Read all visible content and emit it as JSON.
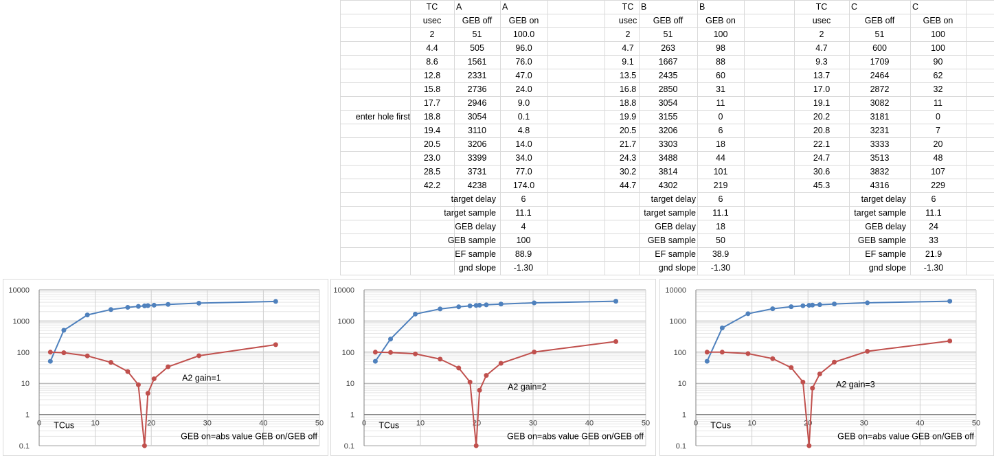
{
  "tables": [
    {
      "header1": [
        "TC",
        "A",
        "A"
      ],
      "header2": [
        "usec",
        "GEB off",
        "GEB on"
      ],
      "rows": [
        [
          "2",
          "51",
          "100.0"
        ],
        [
          "4.4",
          "505",
          "96.0"
        ],
        [
          "8.6",
          "1561",
          "76.0"
        ],
        [
          "12.8",
          "2331",
          "47.0"
        ],
        [
          "15.8",
          "2736",
          "24.0"
        ],
        [
          "17.7",
          "2946",
          "9.0"
        ],
        [
          "18.8",
          "3054",
          "0.1"
        ],
        [
          "19.4",
          "3110",
          "4.8"
        ],
        [
          "20.5",
          "3206",
          "14.0"
        ],
        [
          "23.0",
          "3399",
          "34.0"
        ],
        [
          "28.5",
          "3731",
          "77.0"
        ],
        [
          "42.2",
          "4238",
          "174.0"
        ]
      ],
      "note": "enter hole first",
      "params": [
        [
          "target delay",
          "6"
        ],
        [
          "target sample",
          "11.1"
        ],
        [
          "GEB delay",
          "4"
        ],
        [
          "GEB sample",
          "100"
        ],
        [
          "EF sample",
          "88.9"
        ],
        [
          "gnd slope",
          "-1.30"
        ]
      ]
    },
    {
      "header1": [
        "TC",
        "B",
        "B"
      ],
      "header2": [
        "usec",
        "GEB off",
        "GEB on"
      ],
      "rows": [
        [
          "2",
          "51",
          "100"
        ],
        [
          "4.7",
          "263",
          "98"
        ],
        [
          "9.1",
          "1667",
          "88"
        ],
        [
          "13.5",
          "2435",
          "60"
        ],
        [
          "16.8",
          "2850",
          "31"
        ],
        [
          "18.8",
          "3054",
          "11"
        ],
        [
          "19.9",
          "3155",
          "0"
        ],
        [
          "20.5",
          "3206",
          "6"
        ],
        [
          "21.7",
          "3303",
          "18"
        ],
        [
          "24.3",
          "3488",
          "44"
        ],
        [
          "30.2",
          "3814",
          "101"
        ],
        [
          "44.7",
          "4302",
          "219"
        ]
      ],
      "note": "",
      "params": [
        [
          "target delay",
          "6"
        ],
        [
          "target sample",
          "11.1"
        ],
        [
          "GEB delay",
          "18"
        ],
        [
          "GEB sample",
          "50"
        ],
        [
          "EF sample",
          "38.9"
        ],
        [
          "gnd slope",
          "-1.30"
        ]
      ]
    },
    {
      "header1": [
        "TC",
        "C",
        "C"
      ],
      "header2": [
        "usec",
        "GEB off",
        "GEB on"
      ],
      "rows": [
        [
          "2",
          "51",
          "100"
        ],
        [
          "4.7",
          "600",
          "100"
        ],
        [
          "9.3",
          "1709",
          "90"
        ],
        [
          "13.7",
          "2464",
          "62"
        ],
        [
          "17.0",
          "2872",
          "32"
        ],
        [
          "19.1",
          "3082",
          "11"
        ],
        [
          "20.2",
          "3181",
          "0"
        ],
        [
          "20.8",
          "3231",
          "7"
        ],
        [
          "22.1",
          "3333",
          "20"
        ],
        [
          "24.7",
          "3513",
          "48"
        ],
        [
          "30.6",
          "3832",
          "107"
        ],
        [
          "45.3",
          "4316",
          "229"
        ]
      ],
      "note": "",
      "params": [
        [
          "target delay",
          "6"
        ],
        [
          "target sample",
          "11.1"
        ],
        [
          "GEB delay",
          "24"
        ],
        [
          "GEB sample",
          "33"
        ],
        [
          "EF sample",
          "21.9"
        ],
        [
          "gnd slope",
          "-1.30"
        ]
      ]
    }
  ],
  "colors": {
    "geb_off": "#4f81bd",
    "geb_on": "#c0504d",
    "grid": "#d9d9d9"
  },
  "chart_data": [
    {
      "type": "scatter",
      "title": "",
      "xlabel": "TCus",
      "ylabel": "",
      "annotation": "A2 gain=1",
      "footnote": "GEB on=abs value GEB on/GEB off",
      "x_ticks": [
        "0",
        "10",
        "20",
        "30",
        "40",
        "50"
      ],
      "y_ticks": [
        "0.1",
        "1",
        "10",
        "100",
        "1000",
        "10000"
      ],
      "xlim": [
        0,
        50
      ],
      "ylim": [
        0.1,
        10000
      ],
      "y_scale": "log",
      "grid": true,
      "legend": "none",
      "series": [
        {
          "color": "#4f81bd",
          "x": [
            2,
            4.4,
            8.6,
            12.8,
            15.8,
            17.7,
            18.8,
            19.4,
            20.5,
            23.0,
            28.5,
            42.2
          ],
          "y": [
            51,
            505,
            1561,
            2331,
            2736,
            2946,
            3054,
            3110,
            3206,
            3399,
            3731,
            4238
          ]
        },
        {
          "color": "#c0504d",
          "x": [
            2,
            4.4,
            8.6,
            12.8,
            15.8,
            17.7,
            18.8,
            19.4,
            20.5,
            23.0,
            28.5,
            42.2
          ],
          "y": [
            100,
            96,
            76,
            47,
            24,
            9,
            0.1,
            4.8,
            14,
            34,
            77,
            174
          ]
        }
      ]
    },
    {
      "type": "scatter",
      "title": "",
      "xlabel": "TCus",
      "ylabel": "",
      "annotation": "A2 gain=2",
      "footnote": "GEB on=abs value GEB on/GEB off",
      "x_ticks": [
        "0",
        "10",
        "20",
        "30",
        "40",
        "50"
      ],
      "y_ticks": [
        "0.1",
        "1",
        "10",
        "100",
        "1000",
        "10000"
      ],
      "xlim": [
        0,
        50
      ],
      "ylim": [
        0.1,
        10000
      ],
      "y_scale": "log",
      "grid": true,
      "legend": "none",
      "series": [
        {
          "color": "#4f81bd",
          "x": [
            2,
            4.7,
            9.1,
            13.5,
            16.8,
            18.8,
            19.9,
            20.5,
            21.7,
            24.3,
            30.2,
            44.7
          ],
          "y": [
            51,
            263,
            1667,
            2435,
            2850,
            3054,
            3155,
            3206,
            3303,
            3488,
            3814,
            4302
          ]
        },
        {
          "color": "#c0504d",
          "x": [
            2,
            4.7,
            9.1,
            13.5,
            16.8,
            18.8,
            19.9,
            20.5,
            21.7,
            24.3,
            30.2,
            44.7
          ],
          "y": [
            100,
            98,
            88,
            60,
            31,
            11,
            0.1,
            6,
            18,
            44,
            101,
            219
          ]
        }
      ]
    },
    {
      "type": "scatter",
      "title": "",
      "xlabel": "TCus",
      "ylabel": "",
      "annotation": "A2 gain=3",
      "footnote": "GEB on=abs value GEB on/GEB off",
      "x_ticks": [
        "0",
        "10",
        "20",
        "30",
        "40",
        "50"
      ],
      "y_ticks": [
        "0.1",
        "1",
        "10",
        "100",
        "1000",
        "10000"
      ],
      "xlim": [
        0,
        50
      ],
      "ylim": [
        0.1,
        10000
      ],
      "y_scale": "log",
      "grid": true,
      "legend": "none",
      "series": [
        {
          "color": "#4f81bd",
          "x": [
            2,
            4.7,
            9.3,
            13.7,
            17.0,
            19.1,
            20.2,
            20.8,
            22.1,
            24.7,
            30.6,
            45.3
          ],
          "y": [
            51,
            600,
            1709,
            2464,
            2872,
            3082,
            3181,
            3231,
            3333,
            3513,
            3832,
            4316
          ]
        },
        {
          "color": "#c0504d",
          "x": [
            2,
            4.7,
            9.3,
            13.7,
            17.0,
            19.1,
            20.2,
            20.8,
            22.1,
            24.7,
            30.6,
            45.3
          ],
          "y": [
            100,
            100,
            90,
            62,
            32,
            11,
            0.1,
            7,
            20,
            48,
            107,
            229
          ]
        }
      ]
    }
  ]
}
